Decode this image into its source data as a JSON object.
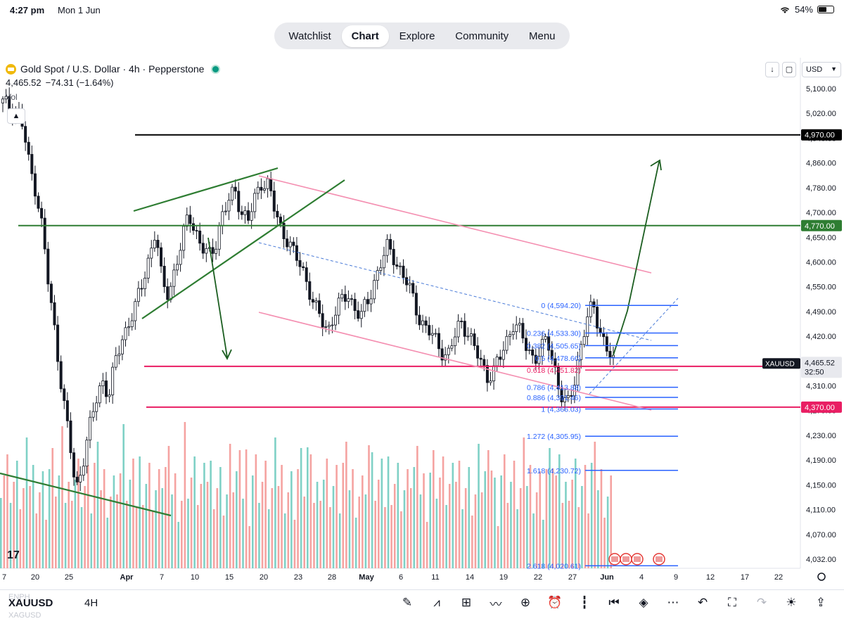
{
  "status_bar": {
    "time": "4:27 pm",
    "date": "Mon 1 Jun",
    "battery": "54%",
    "battery_level": 0.54
  },
  "nav": {
    "items": [
      "Watchlist",
      "Chart",
      "Explore",
      "Community",
      "Menu"
    ],
    "active": "Chart"
  },
  "header": {
    "symbol": "Gold Spot / U.S. Dollar · 4h · Pepperstone",
    "price": "4,465.52",
    "change": "−74.31 (−1.64%)",
    "vol": "Vol",
    "currency": "USD"
  },
  "chart_data": {
    "type": "candlestick",
    "ylim": [
      4015,
      5140
    ],
    "y_ticks": [
      "5,100.00",
      "5,020.00",
      "4,940.00",
      "4,860.00",
      "4,780.00",
      "4,700.00",
      "4,650.00",
      "4,600.00",
      "4,550.00",
      "4,490.00",
      "4,420.00",
      "4,370.00",
      "4,310.00",
      "4,270.00",
      "4,230.00",
      "4,190.00",
      "4,150.00",
      "4,110.00",
      "4,070.00",
      "4,032.00"
    ],
    "x_labels": [
      "7",
      "20",
      "25",
      "Apr",
      "7",
      "10",
      "15",
      "20",
      "23",
      "28",
      "May",
      "6",
      "11",
      "14",
      "19",
      "22",
      "27",
      "Jun",
      "4",
      "9",
      "12",
      "17",
      "22"
    ],
    "colors": {
      "up": "#26a69a",
      "down": "#ef5350",
      "candle": "#131722",
      "green_line": "#2e7d32",
      "red_line": "#e91e63",
      "pink": "#f48fb1",
      "fib": "#2962ff",
      "arrow": "#1b5e20"
    },
    "candles_close": [
      5040,
      5030,
      5025,
      4990,
      4900,
      4850,
      4760,
      4620,
      4520,
      4400,
      4300,
      4180,
      4250,
      4320,
      4380,
      4430,
      4400,
      4470,
      4520,
      4560,
      4590,
      4640,
      4700,
      4760,
      4640,
      4620,
      4680,
      4730,
      4800,
      4760,
      4720,
      4700,
      4730,
      4790,
      4820,
      4850,
      4800,
      4780,
      4830,
      4870,
      4860,
      4800,
      4760,
      4740,
      4700,
      4680,
      4640,
      4590,
      4560,
      4540,
      4580,
      4600,
      4620,
      4590,
      4570,
      4600,
      4650,
      4690,
      4720,
      4700,
      4670,
      4640,
      4600,
      4560,
      4540,
      4520,
      4500,
      4480,
      4520,
      4560,
      4540,
      4500,
      4470,
      4440,
      4450,
      4480,
      4520,
      4560,
      4530,
      4500,
      4480,
      4490,
      4520,
      4470,
      4400,
      4366,
      4420,
      4500,
      4560,
      4594,
      4540,
      4500,
      4465.52
    ],
    "horizontal_levels": [
      {
        "price": 4970,
        "label": "4,970.00",
        "color": "#000000"
      },
      {
        "price": 4770,
        "label": "4,770.00",
        "color": "#2e7d32"
      },
      {
        "price": 4460,
        "label": "4,460.00",
        "color": "#e91e63"
      },
      {
        "price": 4370,
        "label": "4,370.00",
        "color": "#e91e63"
      }
    ],
    "fib_levels": [
      {
        "ratio": "0",
        "price": 4594.2,
        "label": "0 (4,594.20)"
      },
      {
        "ratio": "0.236",
        "price": 4533.3,
        "label": "0.236 (4,533.30)"
      },
      {
        "ratio": "0.382",
        "price": 4505.65,
        "label": "0.382 (4,505.65)"
      },
      {
        "ratio": "0.5",
        "price": 4478.66,
        "label": "0.5 (4,478.66)"
      },
      {
        "ratio": "0.618",
        "price": 4451.82,
        "label": "0.618 (4,451.82)"
      },
      {
        "ratio": "0.786",
        "price": 4413.88,
        "label": "0.786 (4,413.88)"
      },
      {
        "ratio": "0.886",
        "price": 4391.46,
        "label": "0.886 (4,391.46)"
      },
      {
        "ratio": "1",
        "price": 4366.03,
        "label": "1 (4,366.03)"
      },
      {
        "ratio": "1.272",
        "price": 4305.95,
        "label": "1.272 (4,305.95)"
      },
      {
        "ratio": "1.618",
        "price": 4230.72,
        "label": "1.618 (4,230.72)"
      },
      {
        "ratio": "2.618",
        "price": 4020.61,
        "label": "2.618 (4,020.61)"
      }
    ],
    "last_price": {
      "symbol": "XAUUSD",
      "price": "4,465.52",
      "countdown": "32:50"
    }
  },
  "bottom": {
    "ghost_top": "ENPH",
    "symbol": "XAUUSD",
    "timeframe": "4H",
    "ghost_bottom": "XAGUSD"
  },
  "toolbar_icons": [
    "brush-icon",
    "indicators-icon",
    "templates-icon",
    "compare-icon",
    "add-icon",
    "alert-icon",
    "candles-icon",
    "replay-icon",
    "layers-icon",
    "more-icon",
    "undo-icon",
    "fullscreen-icon",
    "redo-icon",
    "idea-icon",
    "share-icon"
  ]
}
